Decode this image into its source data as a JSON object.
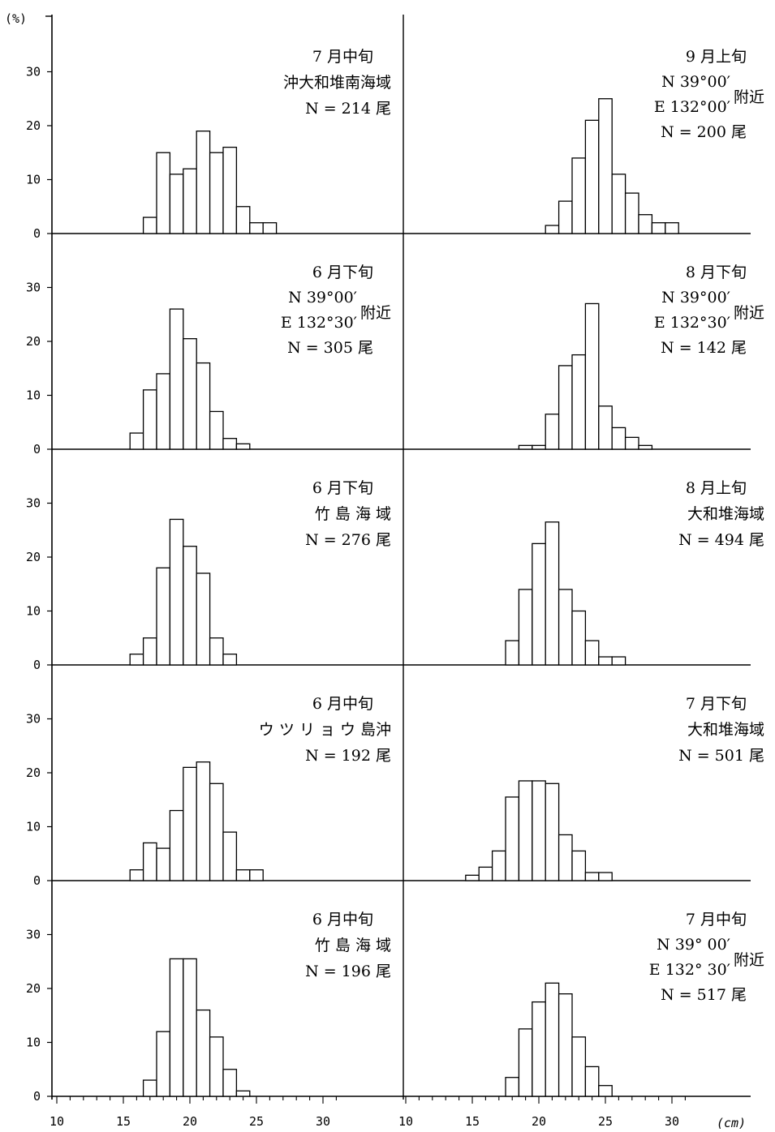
{
  "chart_data": {
    "type": "bar",
    "y_unit": "(%)",
    "x_unit": "(cm)",
    "y_ticks": [
      0,
      10,
      20,
      30
    ],
    "x_ticks": [
      10,
      15,
      20,
      25,
      30
    ],
    "ylim": [
      0,
      33
    ],
    "xlim": [
      10,
      31
    ],
    "bin_width": 1,
    "grid": false,
    "panels": [
      {
        "col": 0,
        "row": 0,
        "label_lines": [
          "7 月中旬",
          "沖大和堆南海域",
          "N = 214 尾"
        ],
        "bins": [
          17,
          18,
          19,
          20,
          21,
          22,
          23,
          24,
          25,
          26
        ],
        "values": [
          3,
          15,
          11,
          12,
          19,
          15,
          16,
          5,
          2,
          2
        ]
      },
      {
        "col": 1,
        "row": 0,
        "label_lines": [
          "9 月上旬",
          "N  39°00′",
          "E 132°00′",
          "附近",
          "N = 200 尾"
        ],
        "bins": [
          21,
          22,
          23,
          24,
          25,
          26,
          27,
          28,
          29,
          30
        ],
        "values": [
          1.5,
          6,
          14,
          21,
          25,
          11,
          7.5,
          3.5,
          2,
          2
        ]
      },
      {
        "col": 0,
        "row": 1,
        "label_lines": [
          "6 月下旬",
          "N  39°00′",
          "E 132°30′",
          "附近",
          "N = 305 尾"
        ],
        "bins": [
          16,
          17,
          18,
          19,
          20,
          21,
          22,
          23,
          24
        ],
        "values": [
          3,
          11,
          14,
          26,
          20.5,
          16,
          7,
          2,
          1
        ]
      },
      {
        "col": 1,
        "row": 1,
        "label_lines": [
          "8 月下旬",
          "N  39°00′",
          "E 132°30′",
          "附近",
          "N = 142 尾"
        ],
        "bins": [
          19,
          20,
          21,
          22,
          23,
          24,
          25,
          26,
          27,
          28
        ],
        "values": [
          0.7,
          0.7,
          6.5,
          15.5,
          17.5,
          27,
          8,
          4,
          2.2,
          0.7
        ]
      },
      {
        "col": 0,
        "row": 2,
        "label_lines": [
          "6 月下旬",
          "竹 島 海 域",
          "N = 276 尾"
        ],
        "bins": [
          16,
          17,
          18,
          19,
          20,
          21,
          22,
          23
        ],
        "values": [
          2,
          5,
          18,
          27,
          22,
          17,
          5,
          2
        ]
      },
      {
        "col": 1,
        "row": 2,
        "label_lines": [
          "8 月上旬",
          "大和堆海域",
          "N = 494 尾"
        ],
        "bins": [
          18,
          19,
          20,
          21,
          22,
          23,
          24,
          25,
          26
        ],
        "values": [
          4.5,
          14,
          22.5,
          26.5,
          14,
          10,
          4.5,
          1.5,
          1.5
        ]
      },
      {
        "col": 0,
        "row": 3,
        "label_lines": [
          "6 月中旬",
          "ウ ツ リ ョ ウ 島沖",
          "N = 192 尾"
        ],
        "bins": [
          16,
          17,
          18,
          19,
          20,
          21,
          22,
          23,
          24,
          25
        ],
        "values": [
          2,
          7,
          6,
          13,
          21,
          22,
          18,
          9,
          2,
          2
        ]
      },
      {
        "col": 1,
        "row": 3,
        "label_lines": [
          "7 月下旬",
          "大和堆海域",
          "N = 501 尾"
        ],
        "bins": [
          15,
          16,
          17,
          18,
          19,
          20,
          21,
          22,
          23,
          24,
          25
        ],
        "values": [
          1,
          2.5,
          5.5,
          15.5,
          18.5,
          18.5,
          18,
          8.5,
          5.5,
          1.5,
          1.5
        ]
      },
      {
        "col": 0,
        "row": 4,
        "label_lines": [
          "6 月中旬",
          "竹 島 海 域",
          "N = 196 尾"
        ],
        "bins": [
          17,
          18,
          19,
          20,
          21,
          22,
          23,
          24
        ],
        "values": [
          3,
          12,
          25.5,
          25.5,
          16,
          11,
          5,
          1
        ]
      },
      {
        "col": 1,
        "row": 4,
        "label_lines": [
          "7 月中旬",
          "N  39° 00′",
          "E 132° 30′",
          "附近",
          "N = 517 尾"
        ],
        "bins": [
          18,
          19,
          20,
          21,
          22,
          23,
          24,
          25
        ],
        "values": [
          3.5,
          12.5,
          17.5,
          21,
          19,
          11,
          5.5,
          2
        ]
      }
    ]
  }
}
